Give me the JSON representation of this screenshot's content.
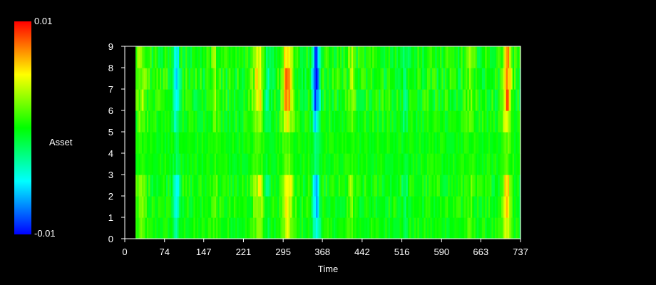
{
  "chart_data": {
    "type": "heatmap",
    "xlabel": "Time",
    "ylabel": "Asset",
    "x_ticks": [
      0,
      74,
      147,
      221,
      295,
      368,
      442,
      516,
      590,
      663,
      737
    ],
    "y_ticks": [
      0,
      1,
      2,
      3,
      4,
      5,
      6,
      7,
      8,
      9
    ],
    "xlim": [
      0,
      737
    ],
    "ylim": [
      0,
      9
    ],
    "data_x_start": 20,
    "colorbar": {
      "min": -0.01,
      "max": 0.01,
      "min_label": "-0.01",
      "max_label": "0.01",
      "label": "Asset",
      "colors": [
        "#0000ff",
        "#00ffff",
        "#00ff00",
        "#ffff00",
        "#ff0000"
      ]
    }
  }
}
